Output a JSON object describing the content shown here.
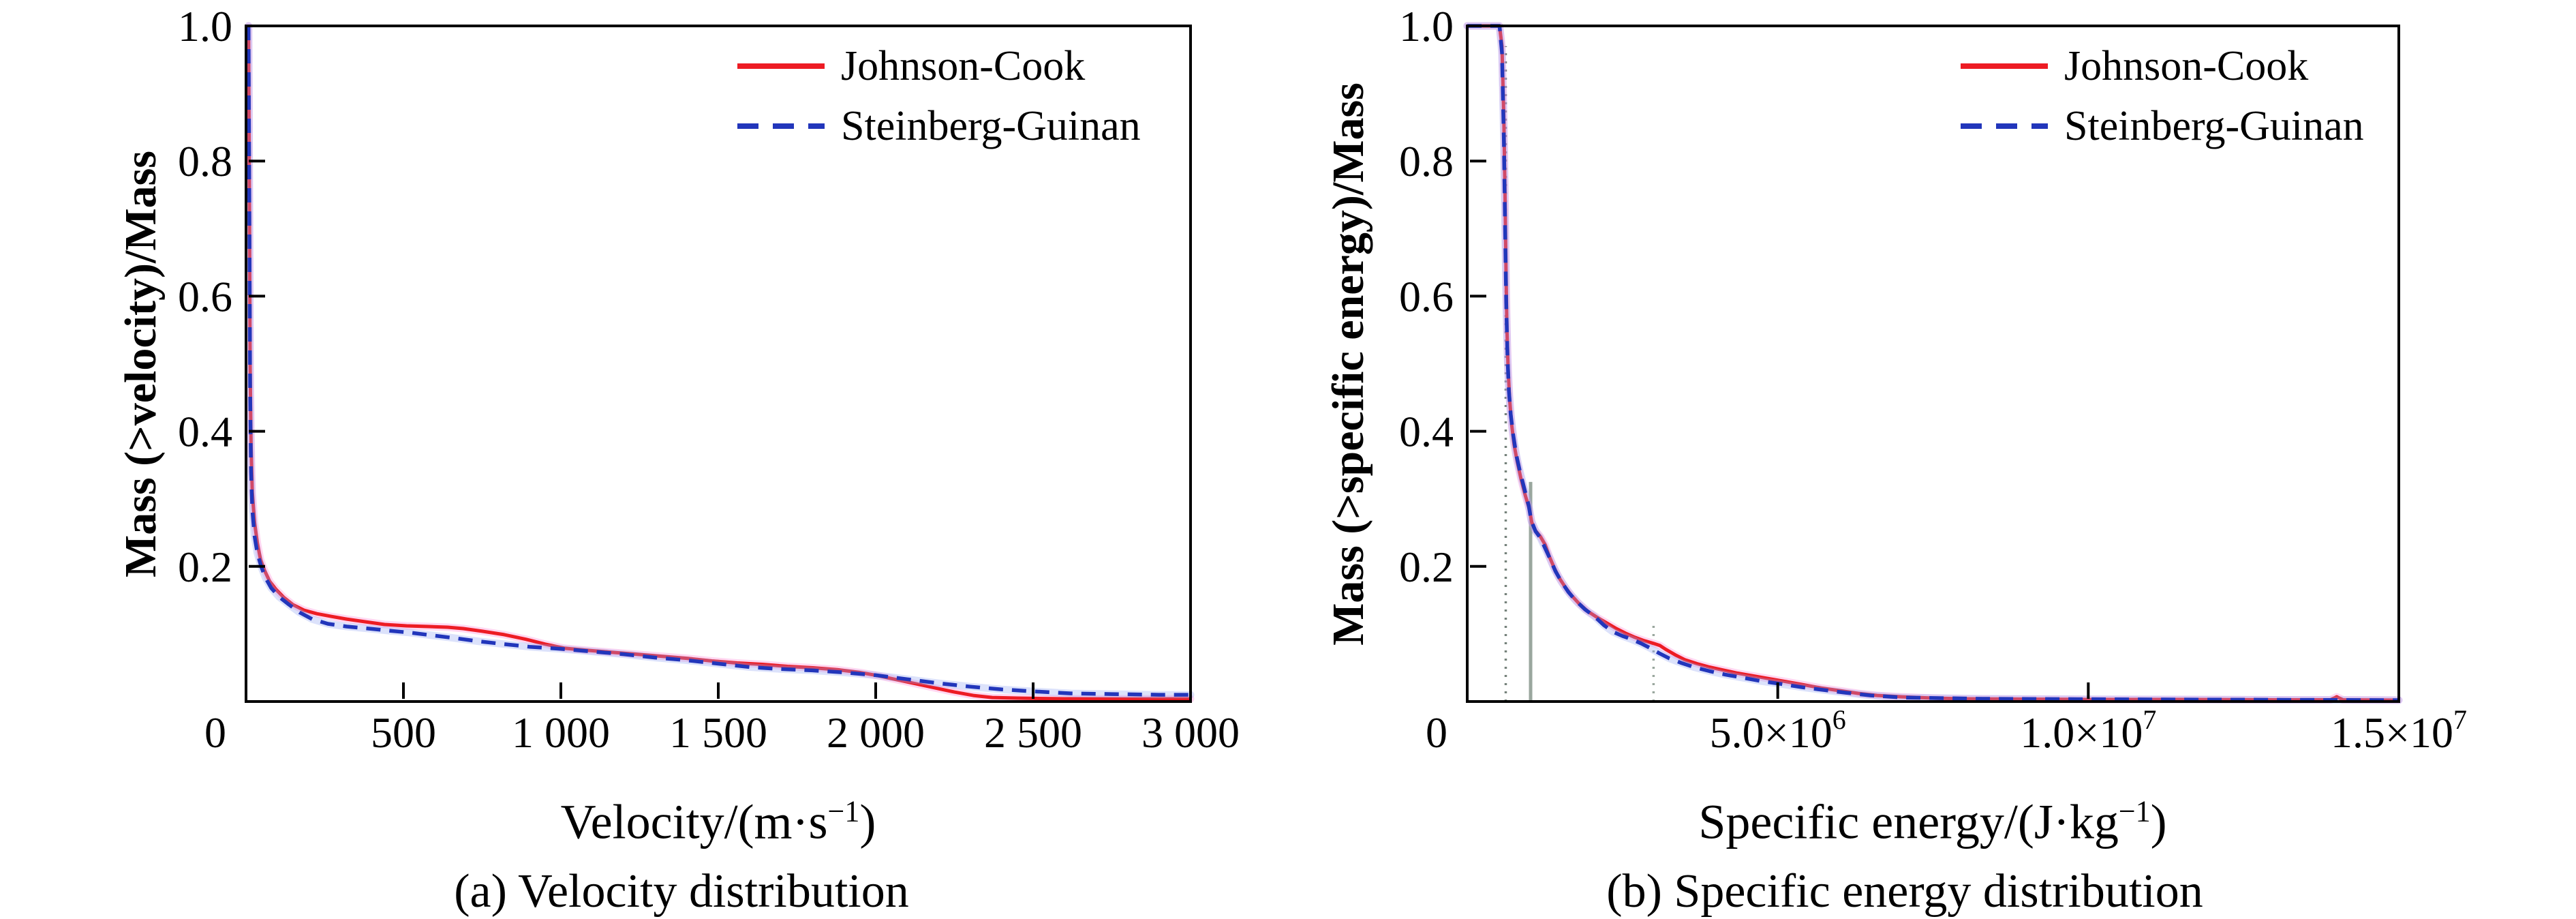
{
  "figure": {
    "background": "#ffffff",
    "text_color": "#000000",
    "axis_color": "#000000"
  },
  "panels": [
    {
      "id": "a",
      "y_axis_label": "Mass (>velocity)/Mass",
      "x_axis_label": {
        "base": "Velocity/(m·s",
        "sup": "−1",
        "end": ")"
      },
      "caption": "(a) Velocity distribution",
      "legend": [
        {
          "label": "Johnson-Cook",
          "color": "#ed1c24",
          "style": "solid"
        },
        {
          "label": "Steinberg-Guinan",
          "color": "#2236bb",
          "style": "dashed"
        }
      ]
    },
    {
      "id": "b",
      "y_axis_label": "Mass (>specific energy)/Mass",
      "x_axis_label": {
        "base": "Specific energy/(J·kg",
        "sup": "−1",
        "end": ")"
      },
      "caption": "(b) Specific energy distribution",
      "legend": [
        {
          "label": "Johnson-Cook",
          "color": "#ed1c24",
          "style": "solid"
        },
        {
          "label": "Steinberg-Guinan",
          "color": "#2236bb",
          "style": "dashed"
        }
      ]
    }
  ],
  "chart_data": [
    {
      "type": "line",
      "title": "(a) Velocity distribution",
      "xlabel": "Velocity/(m·s−1)",
      "ylabel": "Mass (>velocity)/Mass",
      "xlim": [
        0,
        3000
      ],
      "ylim": [
        0,
        1.0
      ],
      "grid": false,
      "legend_position": "top-right-inside",
      "x_ticks": [
        {
          "v": 0,
          "m": "0",
          "dx": -45
        },
        {
          "v": 500,
          "m": "500"
        },
        {
          "v": 1000,
          "m": "1 000"
        },
        {
          "v": 1500,
          "m": "1 500"
        },
        {
          "v": 2000,
          "m": "2 000"
        },
        {
          "v": 2500,
          "m": "2 500"
        },
        {
          "v": 3000,
          "m": "3 000"
        }
      ],
      "y_ticks": [
        {
          "v": 0.2,
          "label": "0.2"
        },
        {
          "v": 0.4,
          "label": "0.4"
        },
        {
          "v": 0.6,
          "label": "0.6"
        },
        {
          "v": 0.8,
          "label": "0.8"
        },
        {
          "v": 1.0,
          "label": "1.0"
        }
      ],
      "series": [
        {
          "name": "Johnson-Cook",
          "color": "#ed1c24",
          "halo": "#ff86d5",
          "style": "solid",
          "points": [
            [
              8,
              1.0
            ],
            [
              11,
              0.72
            ],
            [
              13,
              0.5
            ],
            [
              16,
              0.38
            ],
            [
              20,
              0.31
            ],
            [
              27,
              0.265
            ],
            [
              36,
              0.235
            ],
            [
              46,
              0.21
            ],
            [
              58,
              0.195
            ],
            [
              75,
              0.178
            ],
            [
              95,
              0.166
            ],
            [
              120,
              0.154
            ],
            [
              150,
              0.143
            ],
            [
              185,
              0.135
            ],
            [
              225,
              0.13
            ],
            [
              270,
              0.126
            ],
            [
              320,
              0.122
            ],
            [
              380,
              0.118
            ],
            [
              440,
              0.114
            ],
            [
              510,
              0.112
            ],
            [
              580,
              0.111
            ],
            [
              640,
              0.11
            ],
            [
              690,
              0.108
            ],
            [
              750,
              0.104
            ],
            [
              820,
              0.099
            ],
            [
              890,
              0.092
            ],
            [
              950,
              0.085
            ],
            [
              1010,
              0.079
            ],
            [
              1080,
              0.076
            ],
            [
              1160,
              0.073
            ],
            [
              1240,
              0.07
            ],
            [
              1320,
              0.067
            ],
            [
              1400,
              0.064
            ],
            [
              1480,
              0.06
            ],
            [
              1560,
              0.057
            ],
            [
              1640,
              0.055
            ],
            [
              1720,
              0.052
            ],
            [
              1800,
              0.05
            ],
            [
              1880,
              0.047
            ],
            [
              1950,
              0.043
            ],
            [
              2010,
              0.038
            ],
            [
              2070,
              0.032
            ],
            [
              2130,
              0.026
            ],
            [
              2190,
              0.02
            ],
            [
              2250,
              0.014
            ],
            [
              2310,
              0.009
            ],
            [
              2370,
              0.006
            ],
            [
              2450,
              0.005
            ],
            [
              2600,
              0.004
            ],
            [
              2800,
              0.004
            ],
            [
              3000,
              0.004
            ]
          ]
        },
        {
          "name": "Steinberg-Guinan",
          "color": "#2236bb",
          "halo": "#96a6f2",
          "style": "dashed",
          "points": [
            [
              8,
              1.0
            ],
            [
              11,
              0.68
            ],
            [
              13,
              0.46
            ],
            [
              16,
              0.34
            ],
            [
              20,
              0.285
            ],
            [
              27,
              0.245
            ],
            [
              36,
              0.22
            ],
            [
              48,
              0.2
            ],
            [
              62,
              0.183
            ],
            [
              80,
              0.168
            ],
            [
              105,
              0.155
            ],
            [
              135,
              0.144
            ],
            [
              170,
              0.132
            ],
            [
              210,
              0.122
            ],
            [
              260,
              0.115
            ],
            [
              320,
              0.111
            ],
            [
              390,
              0.108
            ],
            [
              450,
              0.105
            ],
            [
              520,
              0.102
            ],
            [
              590,
              0.098
            ],
            [
              660,
              0.094
            ],
            [
              740,
              0.089
            ],
            [
              820,
              0.085
            ],
            [
              900,
              0.081
            ],
            [
              1000,
              0.078
            ],
            [
              1100,
              0.074
            ],
            [
              1200,
              0.07
            ],
            [
              1300,
              0.065
            ],
            [
              1400,
              0.061
            ],
            [
              1500,
              0.056
            ],
            [
              1600,
              0.051
            ],
            [
              1700,
              0.048
            ],
            [
              1800,
              0.046
            ],
            [
              1900,
              0.043
            ],
            [
              2000,
              0.039
            ],
            [
              2100,
              0.033
            ],
            [
              2200,
              0.027
            ],
            [
              2300,
              0.022
            ],
            [
              2400,
              0.018
            ],
            [
              2500,
              0.015
            ],
            [
              2620,
              0.012
            ],
            [
              2750,
              0.011
            ],
            [
              2900,
              0.01
            ],
            [
              3000,
              0.01
            ]
          ]
        }
      ],
      "markers": []
    },
    {
      "type": "line",
      "title": "(b) Specific energy distribution",
      "xlabel": "Specific energy/(J·kg−1)",
      "ylabel": "Mass (>specific energy)/Mass",
      "xlim": [
        0,
        15000000
      ],
      "ylim": [
        0,
        1.0
      ],
      "grid": false,
      "legend_position": "top-right-inside",
      "x_ticks": [
        {
          "v": 0,
          "m": "0",
          "dx": -45
        },
        {
          "v": 5000000,
          "m": "5.0×10",
          "e": "6"
        },
        {
          "v": 10000000,
          "m": "1.0×10",
          "e": "7"
        },
        {
          "v": 15000000,
          "m": "1.5×10",
          "e": "7"
        }
      ],
      "y_ticks": [
        {
          "v": 0.2,
          "label": "0.2"
        },
        {
          "v": 0.4,
          "label": "0.4"
        },
        {
          "v": 0.6,
          "label": "0.6"
        },
        {
          "v": 0.8,
          "label": "0.8"
        },
        {
          "v": 1.0,
          "label": "1.0"
        }
      ],
      "series": [
        {
          "name": "Johnson-Cook",
          "color": "#ed1c24",
          "halo": "#ff86d5",
          "style": "solid",
          "points": [
            [
              0,
              1.0
            ],
            [
              520000,
              1.0
            ],
            [
              560000,
              0.97
            ],
            [
              590000,
              0.86
            ],
            [
              610000,
              0.74
            ],
            [
              625000,
              0.63
            ],
            [
              640000,
              0.55
            ],
            [
              660000,
              0.49
            ],
            [
              685000,
              0.445
            ],
            [
              715000,
              0.41
            ],
            [
              755000,
              0.38
            ],
            [
              805000,
              0.355
            ],
            [
              865000,
              0.33
            ],
            [
              935000,
              0.305
            ],
            [
              1000000,
              0.285
            ],
            [
              1040000,
              0.265
            ],
            [
              1100000,
              0.253
            ],
            [
              1180000,
              0.244
            ],
            [
              1255000,
              0.232
            ],
            [
              1320000,
              0.215
            ],
            [
              1400000,
              0.198
            ],
            [
              1480000,
              0.183
            ],
            [
              1580000,
              0.169
            ],
            [
              1680000,
              0.157
            ],
            [
              1800000,
              0.145
            ],
            [
              1950000,
              0.133
            ],
            [
              2100000,
              0.124
            ],
            [
              2250000,
              0.116
            ],
            [
              2400000,
              0.108
            ],
            [
              2550000,
              0.101
            ],
            [
              2700000,
              0.095
            ],
            [
              2850000,
              0.09
            ],
            [
              3000000,
              0.086
            ],
            [
              3100000,
              0.083
            ],
            [
              3200000,
              0.077
            ],
            [
              3350000,
              0.069
            ],
            [
              3500000,
              0.062
            ],
            [
              3700000,
              0.056
            ],
            [
              3900000,
              0.051
            ],
            [
              4100000,
              0.047
            ],
            [
              4350000,
              0.042
            ],
            [
              4600000,
              0.038
            ],
            [
              4850000,
              0.034
            ],
            [
              5100000,
              0.03
            ],
            [
              5400000,
              0.025
            ],
            [
              5700000,
              0.02
            ],
            [
              6000000,
              0.016
            ],
            [
              6300000,
              0.012
            ],
            [
              6600000,
              0.009
            ],
            [
              7000000,
              0.007
            ],
            [
              7500000,
              0.005
            ],
            [
              8000000,
              0.004
            ],
            [
              9000000,
              0.0035
            ],
            [
              10000000,
              0.003
            ],
            [
              11500000,
              0.003
            ],
            [
              13000000,
              0.0025
            ],
            [
              13900000,
              0.0025
            ],
            [
              14000000,
              0.007
            ],
            [
              14100000,
              0.0025
            ],
            [
              15000000,
              0.002
            ]
          ]
        },
        {
          "name": "Steinberg-Guinan",
          "color": "#2236bb",
          "halo": "#96a6f2",
          "style": "dashed",
          "points": [
            [
              0,
              1.0
            ],
            [
              520000,
              1.0
            ],
            [
              560000,
              0.96
            ],
            [
              590000,
              0.83
            ],
            [
              610000,
              0.7
            ],
            [
              628000,
              0.59
            ],
            [
              648000,
              0.51
            ],
            [
              670000,
              0.46
            ],
            [
              700000,
              0.425
            ],
            [
              740000,
              0.395
            ],
            [
              790000,
              0.365
            ],
            [
              850000,
              0.34
            ],
            [
              920000,
              0.315
            ],
            [
              990000,
              0.29
            ],
            [
              1030000,
              0.268
            ],
            [
              1100000,
              0.252
            ],
            [
              1180000,
              0.242
            ],
            [
              1250000,
              0.228
            ],
            [
              1330000,
              0.212
            ],
            [
              1420000,
              0.193
            ],
            [
              1520000,
              0.177
            ],
            [
              1630000,
              0.162
            ],
            [
              1750000,
              0.149
            ],
            [
              1900000,
              0.136
            ],
            [
              2050000,
              0.126
            ],
            [
              2200000,
              0.113
            ],
            [
              2350000,
              0.103
            ],
            [
              2500000,
              0.097
            ],
            [
              2650000,
              0.092
            ],
            [
              2800000,
              0.086
            ],
            [
              2950000,
              0.079
            ],
            [
              3100000,
              0.071
            ],
            [
              3250000,
              0.064
            ],
            [
              3450000,
              0.057
            ],
            [
              3650000,
              0.051
            ],
            [
              3900000,
              0.045
            ],
            [
              4150000,
              0.04
            ],
            [
              4450000,
              0.035
            ],
            [
              4750000,
              0.03
            ],
            [
              5050000,
              0.026
            ],
            [
              5400000,
              0.021
            ],
            [
              5750000,
              0.017
            ],
            [
              6100000,
              0.013
            ],
            [
              6500000,
              0.009
            ],
            [
              7000000,
              0.006
            ],
            [
              7600000,
              0.005
            ],
            [
              8300000,
              0.004
            ],
            [
              9500000,
              0.0035
            ],
            [
              11000000,
              0.003
            ],
            [
              13000000,
              0.0025
            ],
            [
              15000000,
              0.002
            ]
          ]
        }
      ],
      "markers": [
        {
          "name": "threshold-line-1",
          "x": 620000,
          "top": 0.97,
          "style": "dotted",
          "color": "#76827b"
        },
        {
          "name": "threshold-line-2",
          "x": 1020000,
          "top": 0.325,
          "style": "solid",
          "color": "#9aa79e"
        },
        {
          "name": "threshold-line-3",
          "x": 3000000,
          "top": 0.115,
          "style": "dotted",
          "color": "#9aa79e"
        }
      ]
    }
  ]
}
